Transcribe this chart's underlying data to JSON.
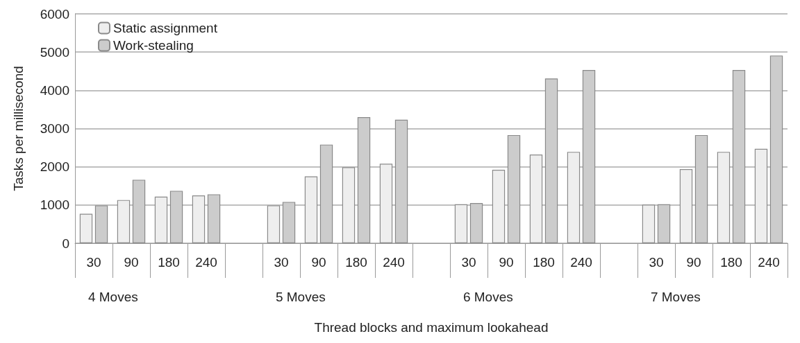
{
  "chart_data": {
    "type": "bar",
    "xlabel": "Thread blocks and maximum lookahead",
    "ylabel": "Tasks per millisecond",
    "categories": [
      "30",
      "90",
      "180",
      "240",
      null,
      "30",
      "90",
      "180",
      "240",
      null,
      "30",
      "90",
      "180",
      "240",
      null,
      "30",
      "90",
      "180",
      "240"
    ],
    "series": [
      {
        "name": "Static assignment",
        "color": "#eeeeee",
        "values": [
          770,
          1130,
          1220,
          1250,
          null,
          990,
          1750,
          1990,
          2080,
          null,
          1020,
          1920,
          2320,
          2390,
          null,
          1010,
          1940,
          2390,
          2470
        ]
      },
      {
        "name": "Work-stealing",
        "color": "#cccccc",
        "values": [
          990,
          1660,
          1370,
          1280,
          null,
          1080,
          2580,
          3300,
          3230,
          null,
          1050,
          2830,
          4310,
          4530,
          null,
          1020,
          2830,
          4530,
          4910
        ]
      }
    ],
    "annotations": [
      "4 Moves",
      "5 Moves",
      "6 Moves",
      "7 Moves"
    ],
    "ylim": [
      0,
      6000
    ],
    "yticks": [
      0,
      1000,
      2000,
      3000,
      4000,
      5000,
      6000
    ],
    "grid": "y",
    "legend": "top left"
  }
}
